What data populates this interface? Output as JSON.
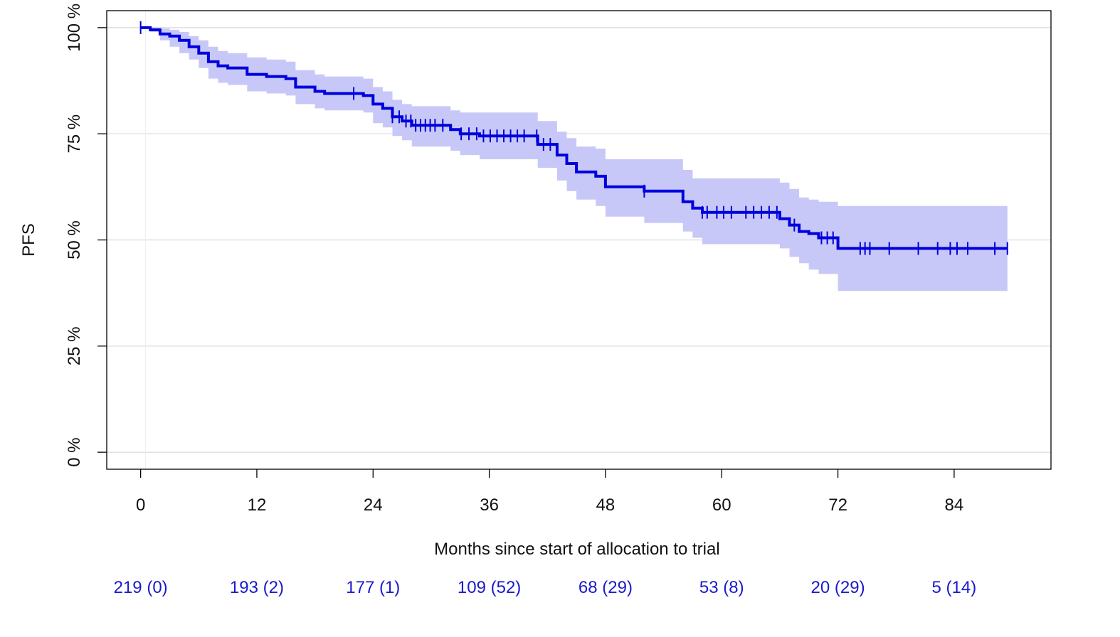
{
  "chart_data": {
    "type": "line",
    "subtype": "kaplan-meier",
    "xlabel": "Months since start of allocation to trial",
    "ylabel": "PFS",
    "xlim": [
      -3.5,
      94
    ],
    "ylim": [
      -4,
      104
    ],
    "x_ticks": [
      0,
      12,
      24,
      36,
      48,
      60,
      72,
      84
    ],
    "x_tick_labels": [
      "0",
      "12",
      "24",
      "36",
      "48",
      "60",
      "72",
      "84"
    ],
    "y_ticks": [
      0,
      25,
      50,
      75,
      100
    ],
    "y_tick_labels": [
      "0 %",
      "25 %",
      "50 %",
      "75 %",
      "100 %"
    ],
    "grid": "horizontal",
    "colors": {
      "line": "#0000dd",
      "band": "#c8c8f8",
      "grid": "#d9d9d9",
      "risk_text": "#1a1acc"
    },
    "series": [
      {
        "x": [
          0,
          1,
          2,
          3,
          4,
          5,
          6,
          7,
          8,
          9,
          11,
          13,
          15,
          16,
          18,
          19,
          21,
          23,
          24,
          25,
          26,
          27,
          28,
          32,
          33,
          35,
          40,
          41,
          43,
          44,
          45,
          47,
          48,
          52,
          56,
          57,
          58,
          66,
          67,
          68,
          69,
          70,
          72,
          89.5
        ],
        "y": [
          100,
          99.5,
          98.5,
          98,
          97,
          95.5,
          94,
          92,
          91,
          90.5,
          89,
          88.5,
          88,
          86,
          85,
          84.5,
          84.5,
          84,
          82,
          81,
          79,
          78,
          77,
          76,
          75,
          74.5,
          74.5,
          72.5,
          70,
          68,
          66,
          65,
          62.5,
          61.5,
          59,
          57.5,
          56.5,
          55,
          53.5,
          52,
          51.5,
          50.5,
          48,
          48
        ],
        "lower": [
          100,
          99,
          97,
          95.5,
          94,
          92.5,
          90.5,
          88,
          87,
          86.5,
          85,
          84.5,
          84,
          82,
          81,
          80.5,
          80.5,
          80,
          77.5,
          76.5,
          74.5,
          73.5,
          72,
          71,
          70,
          69,
          69,
          67,
          64,
          61.5,
          59.5,
          58,
          55.5,
          54,
          52,
          50.5,
          49,
          48,
          46,
          44.5,
          43,
          42,
          38,
          38
        ],
        "upper": [
          100,
          100,
          99.8,
          99.5,
          99,
          98,
          97,
          95.5,
          94.5,
          94,
          93,
          92.5,
          92,
          90,
          89,
          88.5,
          88.5,
          88,
          86,
          85,
          83,
          82,
          81.5,
          80.5,
          80,
          80,
          80,
          78,
          75.5,
          74,
          72,
          71.5,
          69,
          69,
          66.5,
          64.5,
          64.5,
          63.5,
          62,
          60,
          59.5,
          59,
          58,
          58
        ],
        "censored": [
          22,
          26,
          26.7,
          27.4,
          27.9,
          28.4,
          28.9,
          29.4,
          29.9,
          30.4,
          31.2,
          33.1,
          33.9,
          34.7,
          35.4,
          36.1,
          36.8,
          37.5,
          38.2,
          38.9,
          39.6,
          40.9,
          41.6,
          42.3,
          52,
          58,
          58.5,
          59.5,
          60.2,
          61,
          62.5,
          63.3,
          64.1,
          64.9,
          65.7,
          67.5,
          70.3,
          70.9,
          71.5,
          74.3,
          74.8,
          75.3,
          77.3,
          80.3,
          82.3,
          83.6,
          84.3,
          85.4,
          88.2,
          89.5
        ]
      }
    ],
    "risk_table": [
      "219 (0)",
      "193 (2)",
      "177 (1)",
      "109 (52)",
      "68 (29)",
      "53 (8)",
      "20 (29)",
      "5 (14)"
    ]
  }
}
